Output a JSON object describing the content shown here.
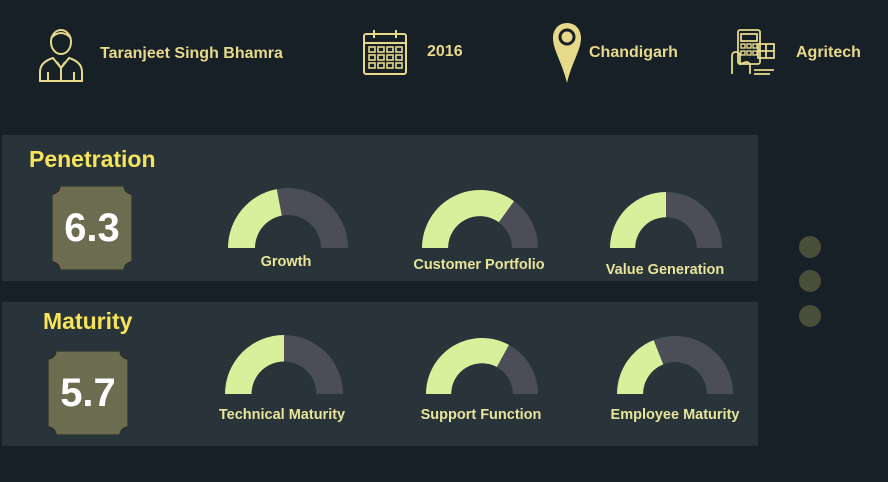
{
  "header": {
    "name": "Taranjeet Singh Bhamra",
    "year": "2016",
    "location": "Chandigarh",
    "sector": "Agritech",
    "icons": [
      "person-icon",
      "calendar-icon",
      "location-pin-icon",
      "tech-device-icon"
    ]
  },
  "colors": {
    "background": "#172027",
    "panel": "#28343a",
    "title": "#f7e45a",
    "gauge_fill": "#d8ef9c",
    "gauge_track": "#4b4e57",
    "badge": "#6c6c50",
    "label": "#e8e49a"
  },
  "sections": [
    {
      "title": "Penetration",
      "score": "6.3",
      "gauges": [
        {
          "label": "Growth",
          "fraction": 0.44
        },
        {
          "label": "Customer Portfolio",
          "fraction": 0.7
        },
        {
          "label": "Value Generation",
          "fraction": 0.5
        }
      ]
    },
    {
      "title": "Maturity",
      "score": "5.7",
      "gauges": [
        {
          "label": "Technical Maturity",
          "fraction": 0.5
        },
        {
          "label": "Support Function",
          "fraction": 0.66
        },
        {
          "label": "Employee Maturity",
          "fraction": 0.38
        }
      ]
    }
  ],
  "pager": {
    "dots": 3
  }
}
